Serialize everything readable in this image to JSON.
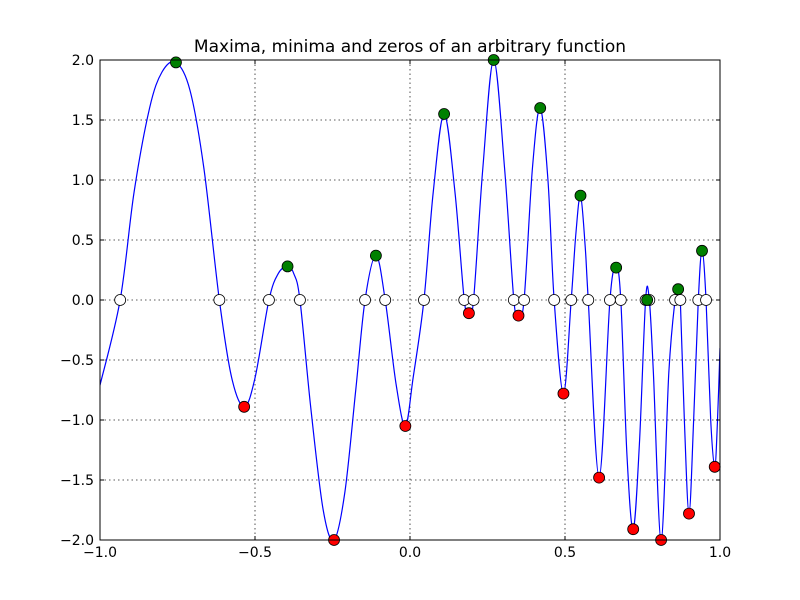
{
  "chart_data": {
    "type": "line",
    "title": "Maxima, minima and zeros of an arbitrary function",
    "xlabel": "",
    "ylabel": "",
    "xlim": [
      -1.0,
      1.0
    ],
    "ylim": [
      -2.0,
      2.0
    ],
    "xticks": [
      -1.0,
      -0.5,
      0.0,
      0.5,
      1.0
    ],
    "xtick_labels": [
      "−1.0",
      "−0.5",
      "0.0",
      "0.5",
      "1.0"
    ],
    "yticks": [
      2.0,
      1.5,
      1.0,
      0.5,
      0.0,
      -0.5,
      -1.0,
      -1.5,
      -2.0
    ],
    "ytick_labels": [
      "2.0",
      "1.5",
      "1.0",
      "0.5",
      "0.0",
      "−0.5",
      "−1.0",
      "−1.5",
      "−2.0"
    ],
    "grid": true,
    "series": [
      {
        "role": "function",
        "color": "#0000ff",
        "points": [
          [
            -1.0,
            -0.71
          ],
          [
            -0.935,
            0.0
          ],
          [
            -0.89,
            0.9
          ],
          [
            -0.84,
            1.6
          ],
          [
            -0.8,
            1.9
          ],
          [
            -0.755,
            1.98
          ],
          [
            -0.71,
            1.75
          ],
          [
            -0.665,
            1.1
          ],
          [
            -0.615,
            0.0
          ],
          [
            -0.575,
            -0.65
          ],
          [
            -0.535,
            -0.89
          ],
          [
            -0.5,
            -0.65
          ],
          [
            -0.455,
            0.0
          ],
          [
            -0.425,
            0.22
          ],
          [
            -0.395,
            0.28
          ],
          [
            -0.375,
            0.22
          ],
          [
            -0.355,
            0.0
          ],
          [
            -0.32,
            -0.9
          ],
          [
            -0.28,
            -1.75
          ],
          [
            -0.245,
            -2.0
          ],
          [
            -0.21,
            -1.6
          ],
          [
            -0.175,
            -0.75
          ],
          [
            -0.145,
            0.0
          ],
          [
            -0.11,
            0.37
          ],
          [
            -0.08,
            0.0
          ],
          [
            -0.045,
            -0.7
          ],
          [
            -0.015,
            -1.05
          ],
          [
            0.01,
            -0.65
          ],
          [
            0.045,
            0.0
          ],
          [
            0.075,
            0.9
          ],
          [
            0.11,
            1.55
          ],
          [
            0.145,
            0.9
          ],
          [
            0.175,
            0.0
          ],
          [
            0.19,
            -0.11
          ],
          [
            0.205,
            0.0
          ],
          [
            0.235,
            1.1
          ],
          [
            0.27,
            2.0
          ],
          [
            0.305,
            1.1
          ],
          [
            0.335,
            0.0
          ],
          [
            0.35,
            -0.13
          ],
          [
            0.368,
            0.0
          ],
          [
            0.395,
            1.1
          ],
          [
            0.42,
            1.6
          ],
          [
            0.445,
            1.0
          ],
          [
            0.465,
            0.0
          ],
          [
            0.495,
            -0.78
          ],
          [
            0.52,
            0.0
          ],
          [
            0.535,
            0.55
          ],
          [
            0.55,
            0.87
          ],
          [
            0.565,
            0.45
          ],
          [
            0.575,
            0.0
          ],
          [
            0.61,
            -1.48
          ],
          [
            0.645,
            0.0
          ],
          [
            0.665,
            0.27
          ],
          [
            0.68,
            0.0
          ],
          [
            0.7,
            -1.3
          ],
          [
            0.72,
            -1.91
          ],
          [
            0.74,
            -1.2
          ],
          [
            0.76,
            0.0
          ],
          [
            0.772,
            0.0
          ],
          [
            0.785,
            -0.6
          ],
          [
            0.81,
            -2.0
          ],
          [
            0.835,
            -0.6
          ],
          [
            0.855,
            0.0
          ],
          [
            0.865,
            0.09
          ],
          [
            0.872,
            0.0
          ],
          [
            0.885,
            -1.0
          ],
          [
            0.9,
            -1.78
          ],
          [
            0.915,
            -1.0
          ],
          [
            0.93,
            0.0
          ],
          [
            0.942,
            0.41
          ],
          [
            0.955,
            0.0
          ],
          [
            0.97,
            -1.0
          ],
          [
            0.983,
            -1.39
          ],
          [
            0.992,
            -1.0
          ],
          [
            1.0,
            -0.4
          ]
        ]
      },
      {
        "role": "maxima",
        "color": "#008000",
        "points": [
          [
            -0.755,
            1.98
          ],
          [
            -0.395,
            0.28
          ],
          [
            -0.11,
            0.37
          ],
          [
            0.11,
            1.55
          ],
          [
            0.27,
            2.0
          ],
          [
            0.42,
            1.6
          ],
          [
            0.55,
            0.87
          ],
          [
            0.665,
            0.27
          ],
          [
            0.765,
            0.0
          ],
          [
            0.865,
            0.09
          ],
          [
            0.942,
            0.41
          ]
        ]
      },
      {
        "role": "minima",
        "color": "#ff0000",
        "points": [
          [
            -0.535,
            -0.89
          ],
          [
            -0.245,
            -2.0
          ],
          [
            -0.015,
            -1.05
          ],
          [
            0.19,
            -0.11
          ],
          [
            0.35,
            -0.13
          ],
          [
            0.495,
            -0.78
          ],
          [
            0.61,
            -1.48
          ],
          [
            0.72,
            -1.91
          ],
          [
            0.81,
            -2.0
          ],
          [
            0.9,
            -1.78
          ],
          [
            0.983,
            -1.39
          ]
        ]
      },
      {
        "role": "zeros",
        "color": "#ffffff",
        "x": [
          -0.935,
          -0.615,
          -0.455,
          -0.355,
          -0.145,
          -0.08,
          0.045,
          0.175,
          0.205,
          0.335,
          0.368,
          0.465,
          0.52,
          0.575,
          0.645,
          0.68,
          0.76,
          0.772,
          0.855,
          0.872,
          0.93,
          0.955
        ]
      }
    ]
  }
}
